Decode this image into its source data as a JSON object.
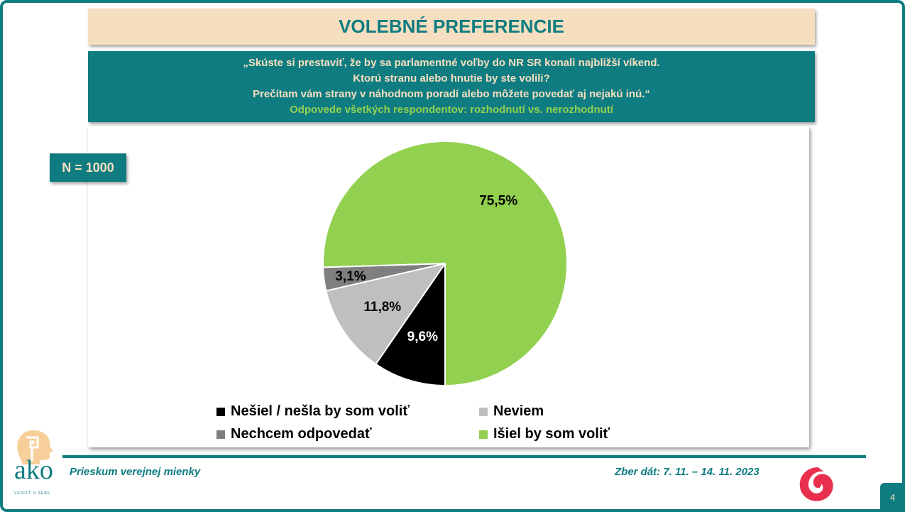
{
  "title": "VOLEBNÉ PREFERENCIE",
  "question": {
    "lines": [
      "„Skúste si prestaviť, že by sa parlamentné voľby do NR SR konali najbližší víkend.",
      "Ktorú stranu alebo hnutie by ste volili?",
      "Prečítam vám strany v náhodnom poradí alebo môžete povedať aj nejakú inú.“"
    ],
    "subtitle": "Odpovede všetkých respondentov: rozhodnutí vs. nerozhodnutí"
  },
  "sample": "N = 1000",
  "chart_data": {
    "type": "pie",
    "start": "bottom, clockwise",
    "slices": [
      {
        "name": "Nešiel / nešla by som voliť",
        "value": 9.6,
        "label": "9,6%",
        "color": "#000000",
        "label_color": "#ffffff"
      },
      {
        "name": "Neviem",
        "value": 11.8,
        "label": "11,8%",
        "color": "#bfbfbf",
        "label_color": "#000000"
      },
      {
        "name": "Nechcem odpovedať",
        "value": 3.1,
        "label": "3,1%",
        "color": "#7f7f7f",
        "label_color": "#000000"
      },
      {
        "name": "Išiel by som voliť",
        "value": 75.5,
        "label": "75,5%",
        "color": "#92d050",
        "label_color": "#000000"
      }
    ],
    "legend_position": "bottom"
  },
  "footer": {
    "left": "Prieskum verejnej mienky",
    "right": "Zber dát: 7. 11. – 14. 11. 2023",
    "page": "4"
  },
  "logo": {
    "word": "ako",
    "tagline": "VEDIEŤ O SEBE"
  }
}
